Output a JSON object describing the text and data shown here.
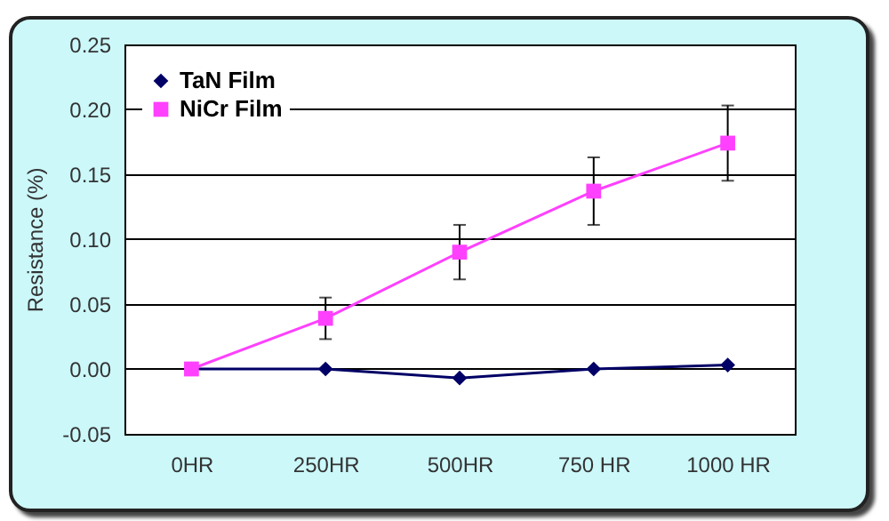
{
  "chart_data": {
    "type": "line",
    "ylabel": "Resistance (%)",
    "categories": [
      "0HR",
      "250HR",
      "500HR",
      "750 HR",
      "1000 HR"
    ],
    "series": [
      {
        "name": "TaN Film",
        "color": "#000066",
        "marker": "diamond",
        "values": [
          0,
          0.0,
          -0.007,
          0.0,
          0.003
        ]
      },
      {
        "name": "NiCr Film",
        "color": "#ff40ff",
        "marker": "square",
        "values": [
          0,
          0.039,
          0.09,
          0.137,
          0.174
        ],
        "errors": [
          null,
          0.016,
          0.021,
          0.026,
          0.029
        ]
      }
    ],
    "ylim": [
      -0.05,
      0.25
    ],
    "yticks": [
      {
        "value": -0.05,
        "label": "-0.05"
      },
      {
        "value": 0,
        "label": "0.00"
      },
      {
        "value": 0.05,
        "label": "0.05"
      },
      {
        "value": 0.1,
        "label": "0.10"
      },
      {
        "value": 0.15,
        "label": "0.15"
      },
      {
        "value": 0.2,
        "label": "0.20"
      },
      {
        "value": 0.25,
        "label": "0.25"
      }
    ],
    "grid": "y",
    "legend": "top left"
  }
}
